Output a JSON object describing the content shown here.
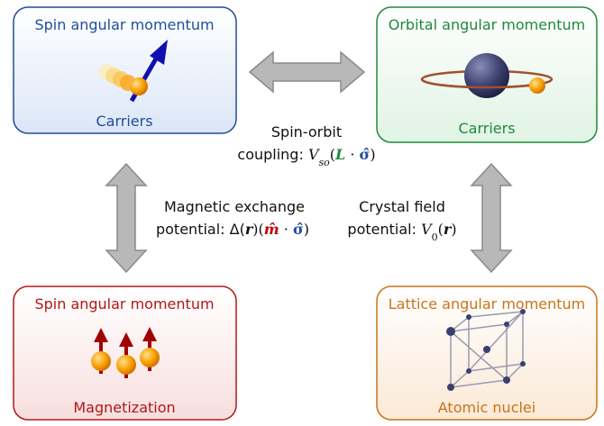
{
  "boxes": [
    {
      "title": "Spin angular momentum",
      "label": "Carriers",
      "color": "#1f4e9a"
    },
    {
      "title": "Orbital angular momentum",
      "label": "Carriers",
      "color": "#1e8a3c"
    },
    {
      "title": "Spin angular momentum",
      "label": "Magnetization",
      "color": "#b01818"
    },
    {
      "title": "Lattice angular momentum",
      "label": "Atomic nuclei",
      "color": "#c8741c"
    }
  ],
  "couplings": [
    {
      "line1": "Spin-orbit",
      "formula": [
        {
          "text": "coupling: "
        },
        {
          "text": "V",
          "italic": true
        },
        {
          "text": "so",
          "italic": true,
          "sub": true
        },
        {
          "text": "("
        },
        {
          "text": "L",
          "italic": true,
          "bold": true,
          "color": "#1e8a3c"
        },
        {
          "text": " · "
        },
        {
          "text": "σ̂",
          "bold": true,
          "color": "#1f4e9a"
        },
        {
          "text": ")"
        }
      ]
    },
    {
      "line1": "Magnetic exchange",
      "formula": [
        {
          "text": "potential: Δ("
        },
        {
          "text": "r",
          "italic": true,
          "bold": true
        },
        {
          "text": ")("
        },
        {
          "text": "m̂",
          "italic": true,
          "bold": true,
          "color": "#c00000"
        },
        {
          "text": " · "
        },
        {
          "text": "σ̂",
          "bold": true,
          "color": "#1f4e9a"
        },
        {
          "text": ")"
        }
      ]
    },
    {
      "line1": "Crystal field",
      "formula": [
        {
          "text": "potential: "
        },
        {
          "text": "V",
          "italic": true
        },
        {
          "text": "0",
          "sub": true
        },
        {
          "text": "("
        },
        {
          "text": "r",
          "italic": true,
          "bold": true
        },
        {
          "text": ")"
        }
      ]
    }
  ]
}
